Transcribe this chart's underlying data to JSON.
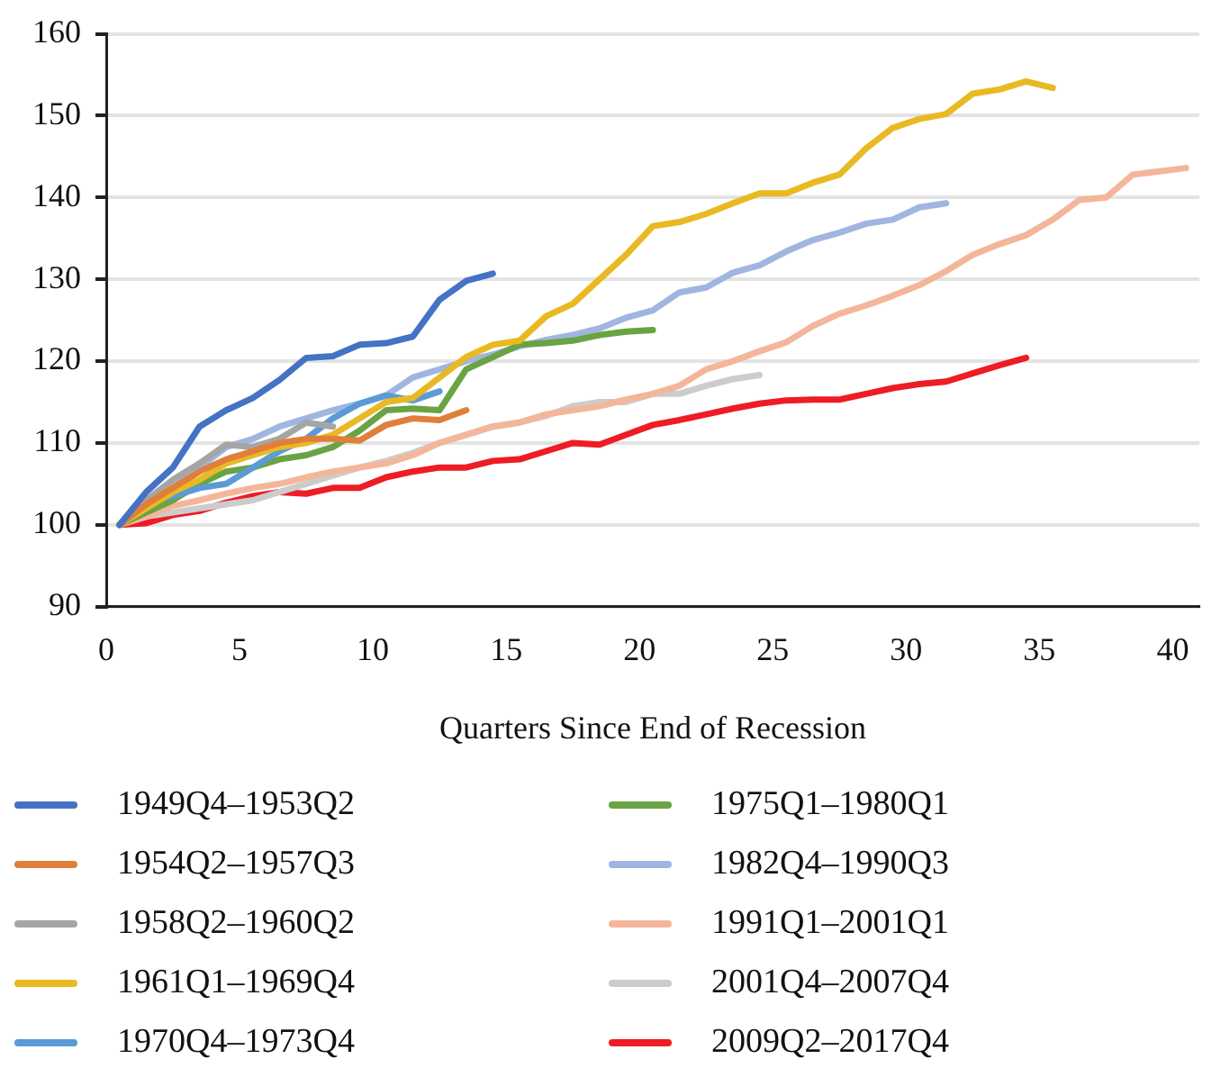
{
  "chart_data": {
    "type": "line",
    "xlabel": "Quarters Since End of Recession",
    "x": [
      0.5,
      1.5,
      2.5,
      3.5,
      4.5,
      5.5,
      6.5,
      7.5,
      8.5,
      9.5,
      10.5,
      11.5,
      12.5,
      13.5,
      14.5,
      15.5,
      16.5,
      17.5,
      18.5,
      19.5,
      20.5,
      21.5,
      22.5,
      23.5,
      24.5,
      25.5,
      26.5,
      27.5,
      28.5,
      29.5,
      30.5,
      31.5,
      32.5,
      33.5,
      34.5,
      35.5,
      36.5,
      37.5,
      38.5,
      39.5,
      40.5
    ],
    "xlim": [
      0,
      41
    ],
    "xticks": [
      0,
      5,
      10,
      15,
      20,
      25,
      30,
      35,
      40
    ],
    "ylim": [
      90,
      160
    ],
    "yticks": [
      90,
      100,
      110,
      120,
      130,
      140,
      150,
      160
    ],
    "grid": "y",
    "legend": "bottom",
    "marker": "none",
    "line_style": "solid",
    "series": [
      {
        "name": "1949Q4–1953Q2",
        "color": "#4472c4",
        "values": [
          100,
          104,
          107,
          112,
          114,
          115.5,
          117.7,
          120.4,
          120.6,
          122,
          122.2,
          123,
          127.5,
          129.8,
          130.7,
          null,
          null,
          null,
          null,
          null,
          null,
          null,
          null,
          null,
          null,
          null,
          null,
          null,
          null,
          null,
          null,
          null,
          null,
          null,
          null,
          null,
          null,
          null,
          null,
          null,
          null
        ]
      },
      {
        "name": "1954Q2–1957Q3",
        "color": "#e07f3a",
        "values": [
          100,
          102.5,
          104.5,
          106.5,
          108,
          109,
          110,
          110.5,
          110.5,
          110.3,
          112.2,
          113,
          112.8,
          114,
          null,
          null,
          null,
          null,
          null,
          null,
          null,
          null,
          null,
          null,
          null,
          null,
          null,
          null,
          null,
          null,
          null,
          null,
          null,
          null,
          null,
          null,
          null,
          null,
          null,
          null,
          null
        ]
      },
      {
        "name": "1958Q2–1960Q2",
        "color": "#a5a5a5",
        "values": [
          100,
          103,
          105.5,
          107.5,
          109.8,
          109.5,
          110.5,
          112.5,
          112,
          null,
          null,
          null,
          null,
          null,
          null,
          null,
          null,
          null,
          null,
          null,
          null,
          null,
          null,
          null,
          null,
          null,
          null,
          null,
          null,
          null,
          null,
          null,
          null,
          null,
          null,
          null,
          null,
          null,
          null,
          null,
          null
        ]
      },
      {
        "name": "1961Q1–1969Q4",
        "color": "#e8b923",
        "values": [
          100,
          102,
          104,
          105.5,
          107.5,
          108.5,
          109.5,
          110,
          111,
          113,
          115,
          115.5,
          118,
          120.5,
          122,
          122.5,
          125.5,
          127,
          130,
          133,
          136.5,
          137,
          138,
          139.3,
          140.5,
          140.5,
          141.8,
          142.8,
          146,
          148.5,
          149.6,
          150.2,
          152.7,
          153.2,
          154.2,
          153.4,
          null,
          null,
          null,
          null,
          null
        ]
      },
      {
        "name": "1970Q4–1973Q4",
        "color": "#5b9bd5",
        "values": [
          100,
          103,
          103.5,
          104.5,
          105,
          107,
          109,
          110.5,
          113,
          114.8,
          115.8,
          115.2,
          116.3,
          null,
          null,
          null,
          null,
          null,
          null,
          null,
          null,
          null,
          null,
          null,
          null,
          null,
          null,
          null,
          null,
          null,
          null,
          null,
          null,
          null,
          null,
          null,
          null,
          null,
          null,
          null,
          null
        ]
      },
      {
        "name": "1975Q1–1980Q1",
        "color": "#6aa343",
        "values": [
          100,
          101.5,
          103,
          105,
          106.5,
          107,
          108,
          108.5,
          109.5,
          111.5,
          114,
          114.2,
          114,
          119,
          120.5,
          122,
          122.2,
          122.5,
          123.2,
          123.6,
          123.8,
          null,
          null,
          null,
          null,
          null,
          null,
          null,
          null,
          null,
          null,
          null,
          null,
          null,
          null,
          null,
          null,
          null,
          null,
          null,
          null
        ]
      },
      {
        "name": "1982Q4–1990Q3",
        "color": "#a0b5e0",
        "values": [
          100,
          102,
          104.5,
          107,
          109.5,
          110.5,
          112,
          113,
          114,
          114.8,
          115.8,
          118,
          119,
          120,
          120.8,
          121.8,
          122.6,
          123.2,
          124,
          125.3,
          126.2,
          128.4,
          129,
          130.8,
          131.7,
          133.4,
          134.8,
          135.7,
          136.8,
          137.3,
          138.8,
          139.3,
          null,
          null,
          null,
          null,
          null,
          null,
          null,
          null,
          null
        ]
      },
      {
        "name": "1991Q1–2001Q1",
        "color": "#f4b69a",
        "values": [
          100,
          101,
          102.3,
          103,
          103.8,
          104.5,
          105,
          105.8,
          106.5,
          107,
          107.5,
          108.5,
          110,
          111,
          112,
          112.5,
          113.5,
          114,
          114.5,
          115.3,
          116,
          117,
          119,
          120,
          121.2,
          122.3,
          124.3,
          125.8,
          126.8,
          128,
          129.3,
          131,
          133,
          134.3,
          135.4,
          137.3,
          139.7,
          140,
          142.8,
          143.2,
          143.6
        ]
      },
      {
        "name": "2001Q4–2007Q4",
        "color": "#cccccc",
        "values": [
          100,
          101,
          101.5,
          102,
          102.5,
          103,
          104,
          105,
          106,
          107,
          107.8,
          108.8,
          110,
          111,
          112,
          112.5,
          113.3,
          114.5,
          115,
          115,
          116,
          116,
          117,
          117.8,
          118.3,
          null,
          null,
          null,
          null,
          null,
          null,
          null,
          null,
          null,
          null,
          null,
          null,
          null,
          null,
          null,
          null
        ]
      },
      {
        "name": "2009Q2–2017Q4",
        "color": "#ee1c25",
        "values": [
          100,
          100.2,
          101.2,
          101.7,
          102.7,
          103.5,
          104,
          103.8,
          104.5,
          104.5,
          105.8,
          106.5,
          107,
          107,
          107.8,
          108,
          109,
          110,
          109.8,
          111,
          112.2,
          112.8,
          113.5,
          114.2,
          114.8,
          115.2,
          115.3,
          115.3,
          116,
          116.7,
          117.2,
          117.5,
          118.5,
          119.5,
          120.4,
          null,
          null,
          null,
          null,
          null,
          null
        ]
      }
    ]
  }
}
